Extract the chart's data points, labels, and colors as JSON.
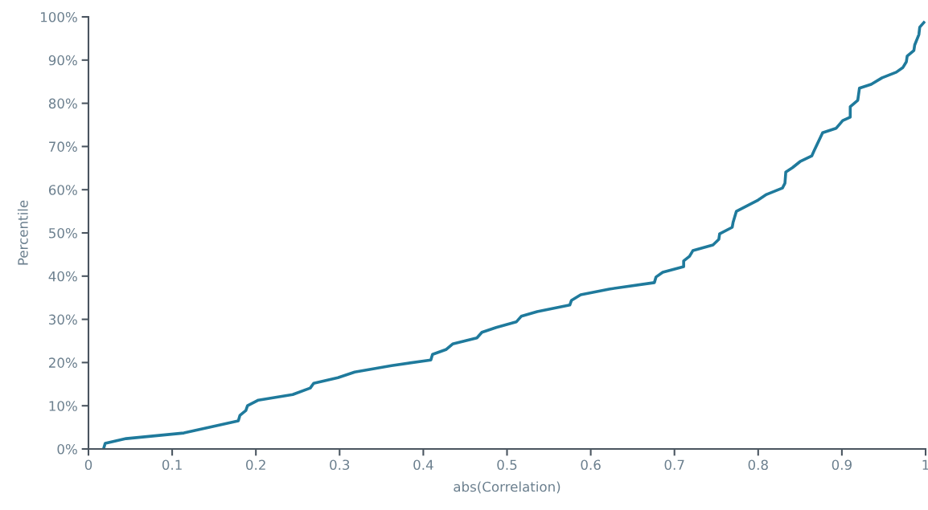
{
  "chart_data": {
    "type": "line",
    "xlabel": "abs(Correlation)",
    "ylabel": "Percentile",
    "x": [
      0.018,
      0.02,
      0.045,
      0.114,
      0.139,
      0.179,
      0.181,
      0.188,
      0.19,
      0.203,
      0.244,
      0.265,
      0.269,
      0.298,
      0.318,
      0.362,
      0.409,
      0.411,
      0.427,
      0.435,
      0.464,
      0.47,
      0.487,
      0.511,
      0.517,
      0.536,
      0.575,
      0.577,
      0.588,
      0.622,
      0.676,
      0.678,
      0.686,
      0.711,
      0.711,
      0.718,
      0.722,
      0.746,
      0.753,
      0.754,
      0.769,
      0.77,
      0.772,
      0.774,
      0.8,
      0.81,
      0.829,
      0.832,
      0.833,
      0.841,
      0.85,
      0.864,
      0.867,
      0.877,
      0.893,
      0.901,
      0.91,
      0.91,
      0.919,
      0.921,
      0.935,
      0.948,
      0.965,
      0.973,
      0.977,
      0.978,
      0.986,
      0.987,
      0.992,
      0.993,
      0.998
    ],
    "series": [
      {
        "color": "#1f7a9c",
        "values": [
          0,
          1.3,
          2.4,
          3.7,
          4.8,
          6.5,
          7.8,
          8.9,
          10.0,
          11.3,
          12.6,
          14.1,
          15.2,
          16.5,
          17.8,
          19.3,
          20.6,
          21.9,
          23.0,
          24.3,
          25.7,
          27.0,
          28.1,
          29.4,
          30.7,
          31.8,
          33.3,
          34.4,
          35.7,
          37.0,
          38.5,
          39.8,
          40.9,
          42.2,
          43.5,
          44.6,
          45.9,
          47.2,
          48.5,
          49.8,
          51.3,
          52.4,
          53.7,
          55.0,
          57.6,
          58.9,
          60.4,
          61.5,
          64.1,
          65.1,
          66.5,
          67.8,
          69.1,
          73.2,
          74.2,
          76.0,
          76.8,
          79.2,
          80.7,
          83.5,
          84.4,
          85.9,
          87.2,
          88.3,
          89.6,
          90.9,
          92.2,
          93.5,
          95.9,
          97.6,
          98.7
        ]
      }
    ],
    "xlim": [
      0,
      1
    ],
    "xticks": [
      0,
      0.1,
      0.2,
      0.3,
      0.4,
      0.5,
      0.6,
      0.7,
      0.8,
      0.9,
      1
    ],
    "ylim": [
      0,
      100
    ],
    "yticks": [
      {
        "value": 0,
        "label": "0%"
      },
      {
        "value": 10,
        "label": "10%"
      },
      {
        "value": 20,
        "label": "20%"
      },
      {
        "value": 30,
        "label": "30%"
      },
      {
        "value": 40,
        "label": "40%"
      },
      {
        "value": 50,
        "label": "50%"
      },
      {
        "value": 60,
        "label": "60%"
      },
      {
        "value": 70,
        "label": "70%"
      },
      {
        "value": 80,
        "label": "80%"
      },
      {
        "value": 90,
        "label": "90%"
      },
      {
        "value": 100,
        "label": "100%"
      }
    ],
    "grid": false,
    "legend": false,
    "marker": "none",
    "line_style": "solid"
  }
}
